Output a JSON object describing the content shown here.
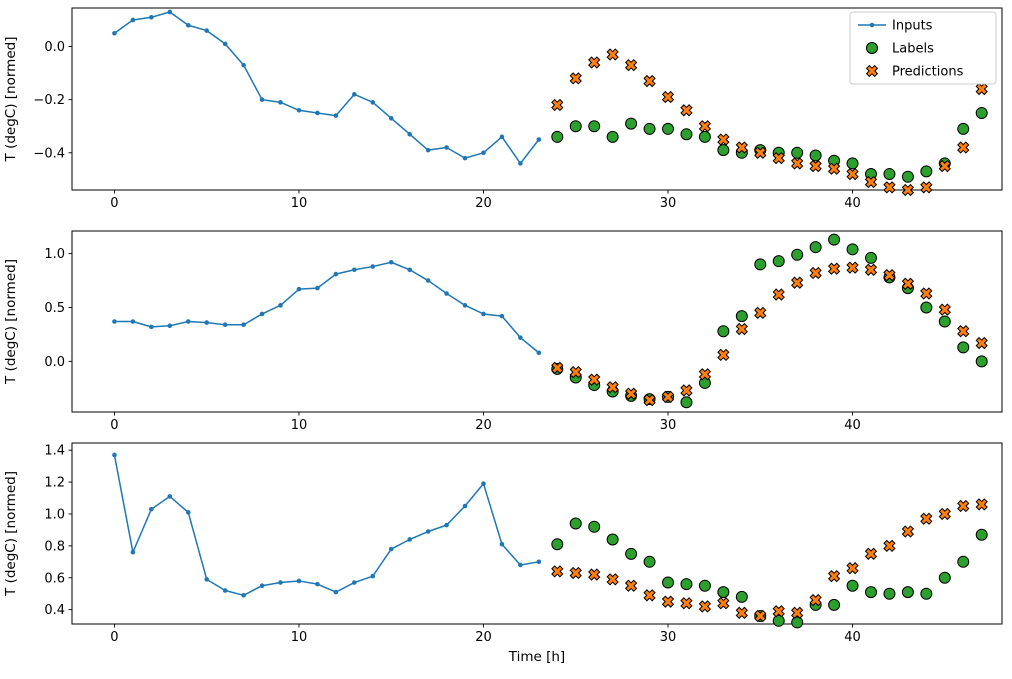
{
  "figure": {
    "background": "#ffffff",
    "xlabel": "Time [h]",
    "ylabel": "T (degC) [normed]",
    "legend_labels": [
      "Inputs",
      "Labels",
      "Predictions"
    ],
    "colors": {
      "inputs": "#1f77b4",
      "labels": "#2ca02c",
      "predictions": "#ff7f0e",
      "marker_edge": "#000000",
      "axes_edge": "#000000",
      "legend_border": "#cccccc"
    }
  },
  "chart_data": [
    {
      "type": "line",
      "title": "",
      "xlabel": "",
      "ylabel": "T (degC) [normed]",
      "xlim": [
        -2.3,
        48.1
      ],
      "ylim": [
        -0.54,
        0.145
      ],
      "xticks": [
        0,
        10,
        20,
        30,
        40
      ],
      "yticks": [
        0.0,
        -0.2,
        -0.4
      ],
      "grid": false,
      "legend_visible": true,
      "legend_position": "upper right",
      "series": [
        {
          "name": "Inputs",
          "kind": "line",
          "marker": "dot",
          "color": "#1f77b4",
          "x_start": 0,
          "values": [
            0.05,
            0.1,
            0.11,
            0.13,
            0.08,
            0.06,
            0.01,
            -0.07,
            -0.2,
            -0.21,
            -0.24,
            -0.25,
            -0.26,
            -0.18,
            -0.21,
            -0.27,
            -0.33,
            -0.39,
            -0.38,
            -0.42,
            -0.4,
            -0.34,
            -0.44,
            -0.35
          ]
        },
        {
          "name": "Labels",
          "kind": "scatter",
          "marker": "circle",
          "color": "#2ca02c",
          "x_start": 24,
          "values": [
            -0.34,
            -0.3,
            -0.3,
            -0.34,
            -0.29,
            -0.31,
            -0.31,
            -0.33,
            -0.34,
            -0.39,
            -0.4,
            -0.39,
            -0.4,
            -0.4,
            -0.41,
            -0.43,
            -0.44,
            -0.48,
            -0.48,
            -0.49,
            -0.47,
            -0.44,
            -0.31,
            -0.25
          ]
        },
        {
          "name": "Predictions",
          "kind": "scatter",
          "marker": "X",
          "color": "#ff7f0e",
          "x_start": 24,
          "values": [
            -0.22,
            -0.12,
            -0.06,
            -0.03,
            -0.07,
            -0.13,
            -0.19,
            -0.24,
            -0.3,
            -0.35,
            -0.38,
            -0.4,
            -0.42,
            -0.44,
            -0.45,
            -0.46,
            -0.48,
            -0.51,
            -0.53,
            -0.54,
            -0.53,
            -0.45,
            -0.38,
            -0.16
          ]
        }
      ]
    },
    {
      "type": "line",
      "title": "",
      "xlabel": "",
      "ylabel": "T (degC) [normed]",
      "xlim": [
        -2.3,
        48.1
      ],
      "ylim": [
        -0.47,
        1.21
      ],
      "xticks": [
        0,
        10,
        20,
        30,
        40
      ],
      "yticks": [
        0.0,
        0.5,
        1.0
      ],
      "grid": false,
      "legend_visible": false,
      "series": [
        {
          "name": "Inputs",
          "kind": "line",
          "marker": "dot",
          "color": "#1f77b4",
          "x_start": 0,
          "values": [
            0.37,
            0.37,
            0.32,
            0.33,
            0.37,
            0.36,
            0.34,
            0.34,
            0.44,
            0.52,
            0.67,
            0.68,
            0.81,
            0.85,
            0.88,
            0.92,
            0.85,
            0.75,
            0.63,
            0.52,
            0.44,
            0.42,
            0.22,
            0.08
          ]
        },
        {
          "name": "Labels",
          "kind": "scatter",
          "marker": "circle",
          "color": "#2ca02c",
          "x_start": 24,
          "values": [
            -0.07,
            -0.15,
            -0.22,
            -0.28,
            -0.32,
            -0.35,
            -0.33,
            -0.38,
            -0.2,
            0.28,
            0.42,
            0.9,
            0.93,
            0.99,
            1.06,
            1.13,
            1.04,
            0.96,
            0.78,
            0.68,
            0.5,
            0.37,
            0.13,
            0.0
          ]
        },
        {
          "name": "Predictions",
          "kind": "scatter",
          "marker": "X",
          "color": "#ff7f0e",
          "x_start": 24,
          "values": [
            -0.06,
            -0.1,
            -0.17,
            -0.24,
            -0.3,
            -0.36,
            -0.33,
            -0.27,
            -0.12,
            0.06,
            0.3,
            0.45,
            0.62,
            0.73,
            0.82,
            0.86,
            0.87,
            0.85,
            0.8,
            0.72,
            0.63,
            0.48,
            0.28,
            0.17
          ]
        }
      ]
    },
    {
      "type": "line",
      "title": "",
      "xlabel": "Time [h]",
      "ylabel": "T (degC) [normed]",
      "xlim": [
        -2.3,
        48.1
      ],
      "ylim": [
        0.31,
        1.445
      ],
      "xticks": [
        0,
        10,
        20,
        30,
        40
      ],
      "yticks": [
        0.4,
        0.6,
        0.8,
        1.0,
        1.2,
        1.4
      ],
      "grid": false,
      "legend_visible": false,
      "series": [
        {
          "name": "Inputs",
          "kind": "line",
          "marker": "dot",
          "color": "#1f77b4",
          "x_start": 0,
          "values": [
            1.37,
            0.76,
            1.03,
            1.11,
            1.01,
            0.59,
            0.52,
            0.49,
            0.55,
            0.57,
            0.58,
            0.56,
            0.51,
            0.57,
            0.61,
            0.78,
            0.84,
            0.89,
            0.93,
            1.05,
            1.19,
            0.81,
            0.68,
            0.7
          ]
        },
        {
          "name": "Labels",
          "kind": "scatter",
          "marker": "circle",
          "color": "#2ca02c",
          "x_start": 24,
          "values": [
            0.81,
            0.94,
            0.92,
            0.84,
            0.75,
            0.7,
            0.57,
            0.56,
            0.55,
            0.51,
            0.48,
            0.36,
            0.33,
            0.32,
            0.43,
            0.43,
            0.55,
            0.51,
            0.5,
            0.51,
            0.5,
            0.6,
            0.7,
            0.87
          ]
        },
        {
          "name": "Predictions",
          "kind": "scatter",
          "marker": "X",
          "color": "#ff7f0e",
          "x_start": 24,
          "values": [
            0.64,
            0.63,
            0.62,
            0.59,
            0.55,
            0.49,
            0.45,
            0.44,
            0.42,
            0.44,
            0.38,
            0.36,
            0.39,
            0.38,
            0.46,
            0.61,
            0.66,
            0.75,
            0.8,
            0.89,
            0.97,
            1.0,
            1.05,
            1.06
          ]
        }
      ]
    }
  ]
}
